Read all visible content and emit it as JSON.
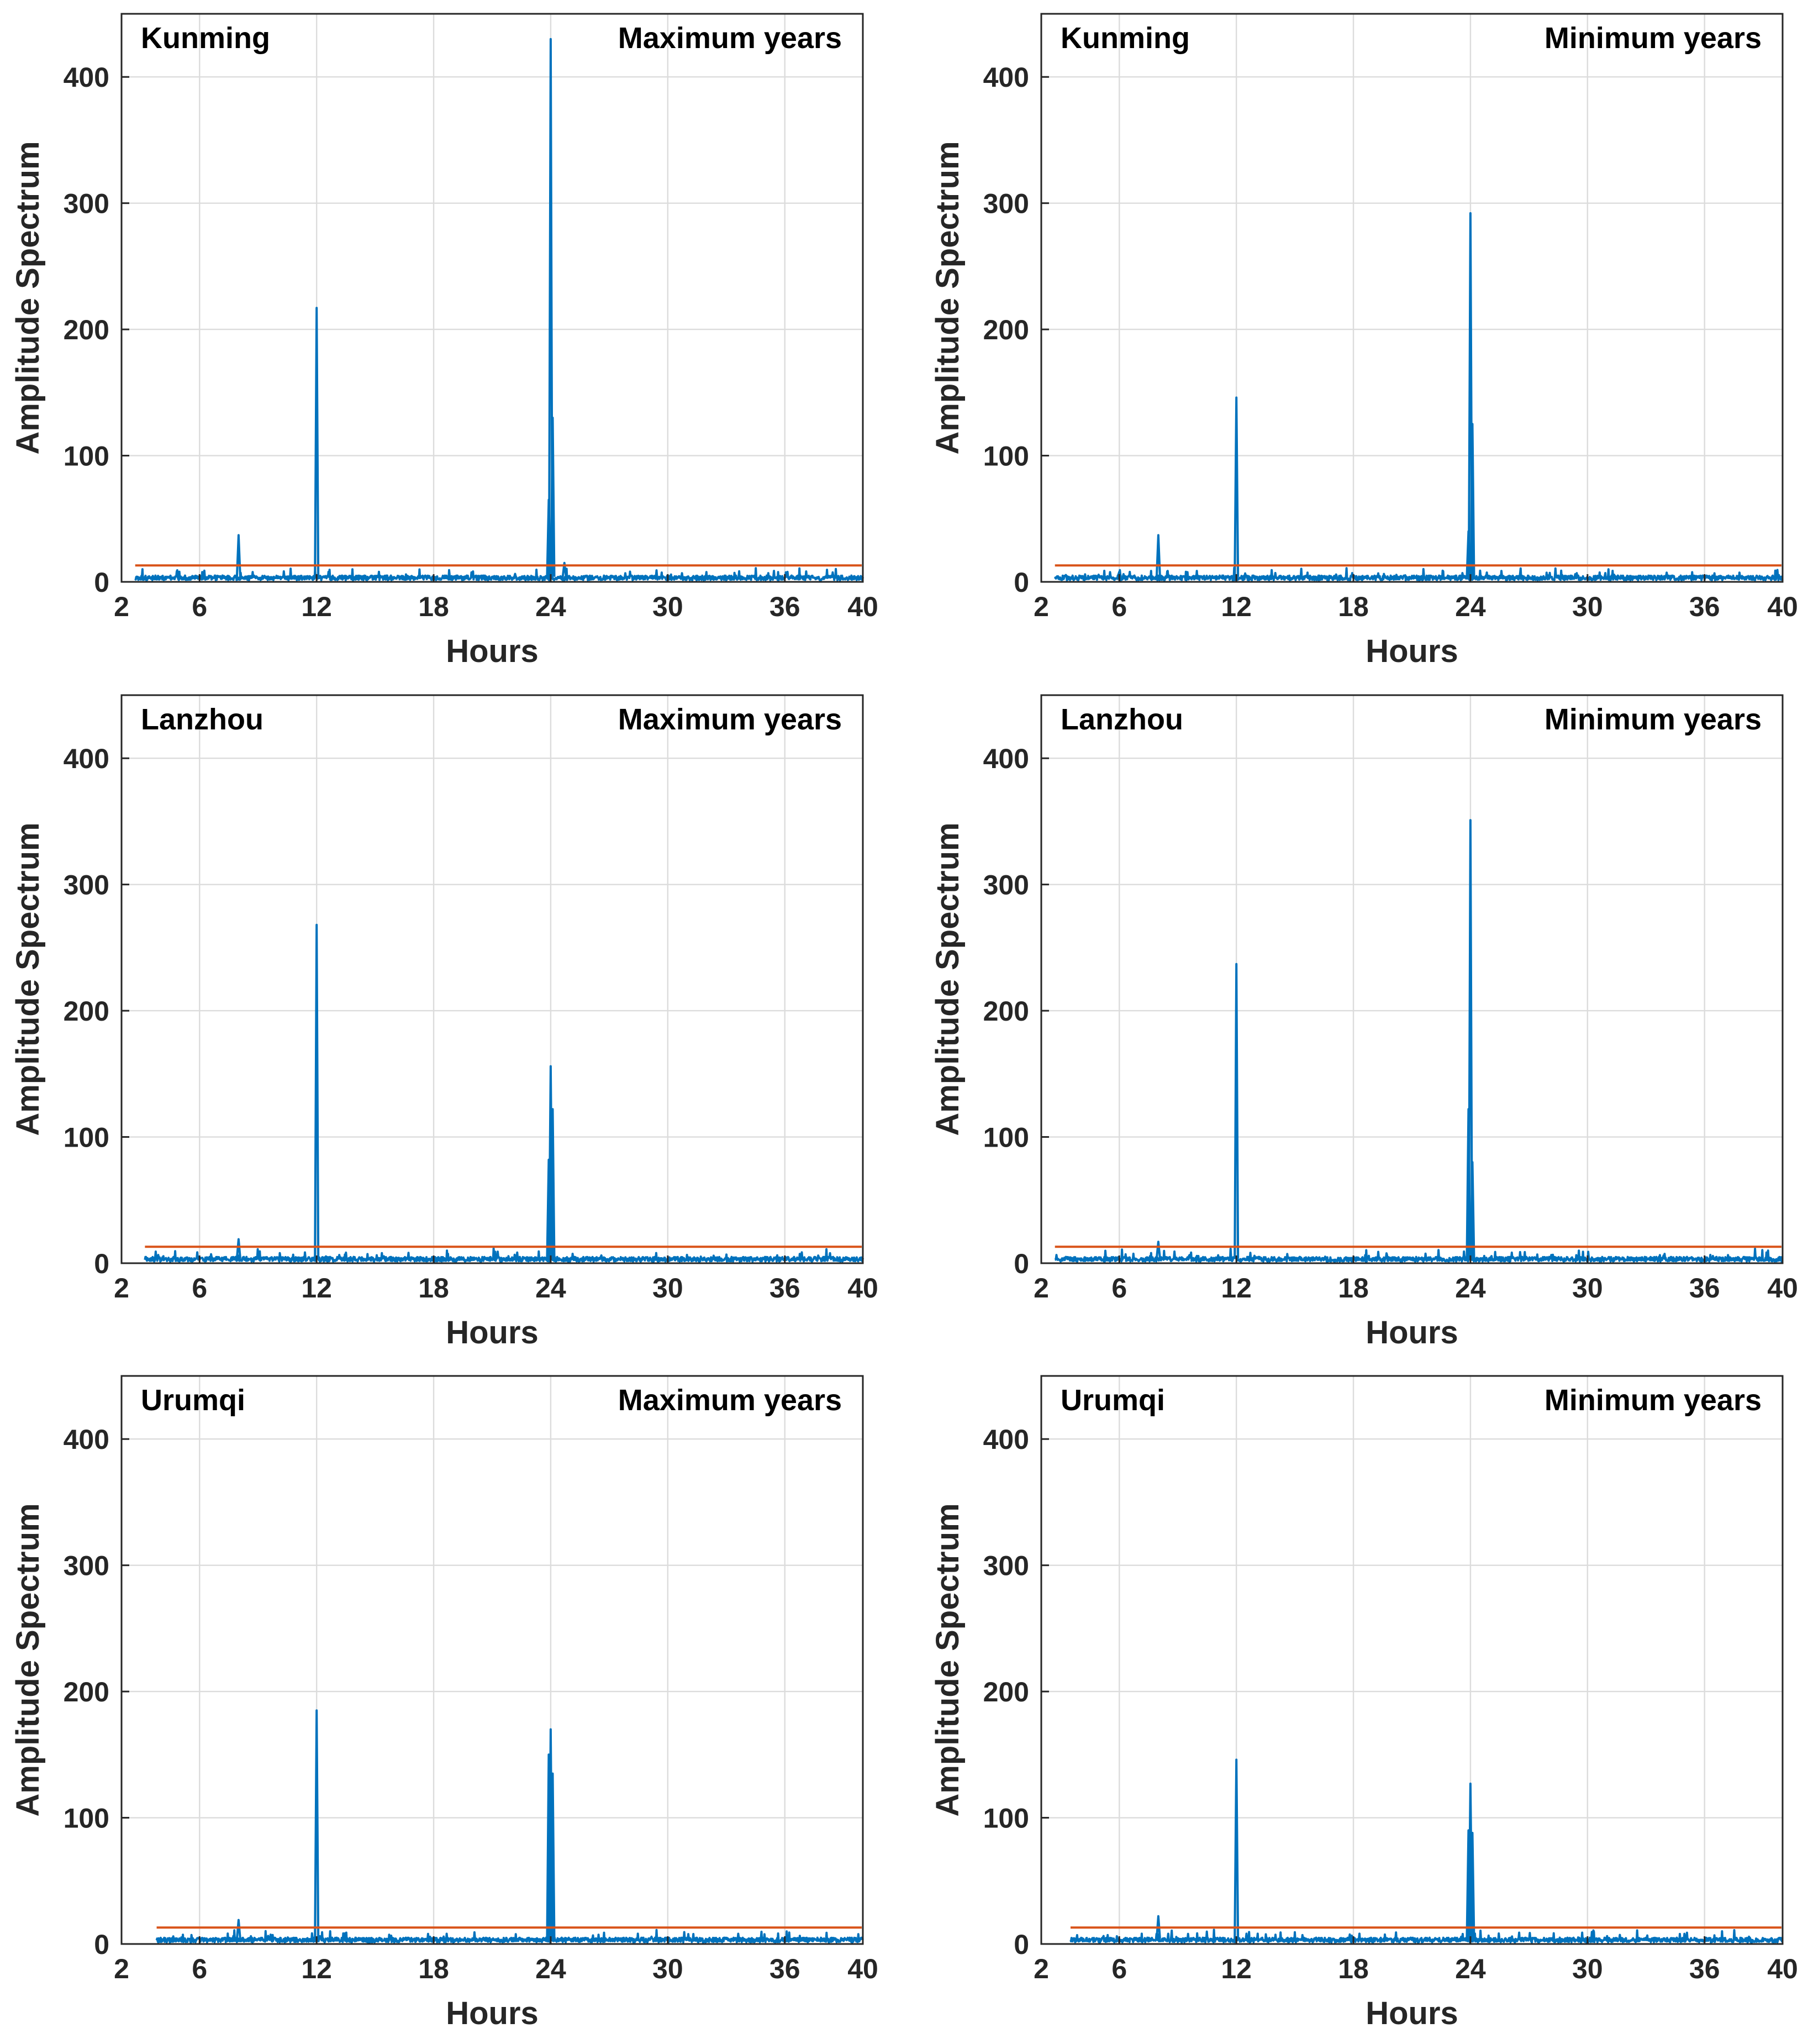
{
  "colors": {
    "spectrum": "#0072BD",
    "threshold": "#D95319",
    "grid": "#dcdcdc",
    "axes": "#262626"
  },
  "chart_data": [
    {
      "type": "line",
      "station": "Kunming",
      "condition": "Maximum years",
      "xlabel": "Hours",
      "ylabel": "Amplitude Spectrum",
      "xlim": [
        2,
        40
      ],
      "ylim": [
        0,
        450
      ],
      "xticks": [
        2,
        6,
        12,
        18,
        24,
        30,
        36,
        40
      ],
      "yticks": [
        0,
        100,
        200,
        300,
        400
      ],
      "grid": true,
      "x_start": 2.7,
      "noise_level": 4,
      "threshold": 13,
      "peaks": [
        {
          "x": 8,
          "y": 37
        },
        {
          "x": 12,
          "y": 217
        },
        {
          "x": 23.9,
          "y": 65
        },
        {
          "x": 24,
          "y": 430
        },
        {
          "x": 24.1,
          "y": 130
        },
        {
          "x": 24.7,
          "y": 15
        }
      ]
    },
    {
      "type": "line",
      "station": "Kunming",
      "condition": "Minimum years",
      "xlabel": "Hours",
      "ylabel": "Amplitude Spectrum",
      "xlim": [
        2,
        40
      ],
      "ylim": [
        0,
        450
      ],
      "xticks": [
        2,
        6,
        12,
        18,
        24,
        30,
        36,
        40
      ],
      "yticks": [
        0,
        100,
        200,
        300,
        400
      ],
      "grid": true,
      "x_start": 2.7,
      "noise_level": 4,
      "threshold": 13,
      "peaks": [
        {
          "x": 6,
          "y": 8
        },
        {
          "x": 8,
          "y": 37
        },
        {
          "x": 12,
          "y": 146
        },
        {
          "x": 23.9,
          "y": 40
        },
        {
          "x": 24,
          "y": 292
        },
        {
          "x": 24.1,
          "y": 125
        }
      ]
    },
    {
      "type": "line",
      "station": "Lanzhou",
      "condition": "Maximum years",
      "xlabel": "Hours",
      "ylabel": "Amplitude Spectrum",
      "xlim": [
        2,
        40
      ],
      "ylim": [
        0,
        450
      ],
      "xticks": [
        2,
        6,
        12,
        18,
        24,
        30,
        36,
        40
      ],
      "yticks": [
        0,
        100,
        200,
        300,
        400
      ],
      "grid": true,
      "x_start": 3.2,
      "noise_level": 4,
      "threshold": 13,
      "peaks": [
        {
          "x": 8,
          "y": 19
        },
        {
          "x": 12,
          "y": 268
        },
        {
          "x": 23.9,
          "y": 82
        },
        {
          "x": 24,
          "y": 156
        },
        {
          "x": 24.1,
          "y": 122
        }
      ]
    },
    {
      "type": "line",
      "station": "Lanzhou",
      "condition": "Minimum years",
      "xlabel": "Hours",
      "ylabel": "Amplitude Spectrum",
      "xlim": [
        2,
        40
      ],
      "ylim": [
        0,
        450
      ],
      "xticks": [
        2,
        6,
        12,
        18,
        24,
        30,
        36,
        40
      ],
      "yticks": [
        0,
        100,
        200,
        300,
        400
      ],
      "grid": true,
      "x_start": 2.7,
      "noise_level": 4,
      "threshold": 13,
      "peaks": [
        {
          "x": 8,
          "y": 17
        },
        {
          "x": 12,
          "y": 237
        },
        {
          "x": 23.9,
          "y": 122
        },
        {
          "x": 24,
          "y": 351
        },
        {
          "x": 24.1,
          "y": 80
        }
      ]
    },
    {
      "type": "line",
      "station": "Urumqi",
      "condition": "Maximum years",
      "xlabel": "Hours",
      "ylabel": "Amplitude Spectrum",
      "xlim": [
        2,
        40
      ],
      "ylim": [
        0,
        450
      ],
      "xticks": [
        2,
        6,
        12,
        18,
        24,
        30,
        36,
        40
      ],
      "yticks": [
        0,
        100,
        200,
        300,
        400
      ],
      "grid": true,
      "x_start": 3.8,
      "noise_level": 4,
      "threshold": 13,
      "peaks": [
        {
          "x": 8,
          "y": 19
        },
        {
          "x": 12,
          "y": 185
        },
        {
          "x": 23.9,
          "y": 150
        },
        {
          "x": 24,
          "y": 170
        },
        {
          "x": 24.1,
          "y": 135
        }
      ]
    },
    {
      "type": "line",
      "station": "Urumqi",
      "condition": "Minimum years",
      "xlabel": "Hours",
      "ylabel": "Amplitude Spectrum",
      "xlim": [
        2,
        40
      ],
      "ylim": [
        0,
        450
      ],
      "xticks": [
        2,
        6,
        12,
        18,
        24,
        30,
        36,
        40
      ],
      "yticks": [
        0,
        100,
        200,
        300,
        400
      ],
      "grid": true,
      "x_start": 3.5,
      "noise_level": 4,
      "threshold": 13,
      "peaks": [
        {
          "x": 8,
          "y": 22
        },
        {
          "x": 12,
          "y": 146
        },
        {
          "x": 23.9,
          "y": 90
        },
        {
          "x": 24,
          "y": 127
        },
        {
          "x": 24.1,
          "y": 88
        }
      ]
    }
  ]
}
